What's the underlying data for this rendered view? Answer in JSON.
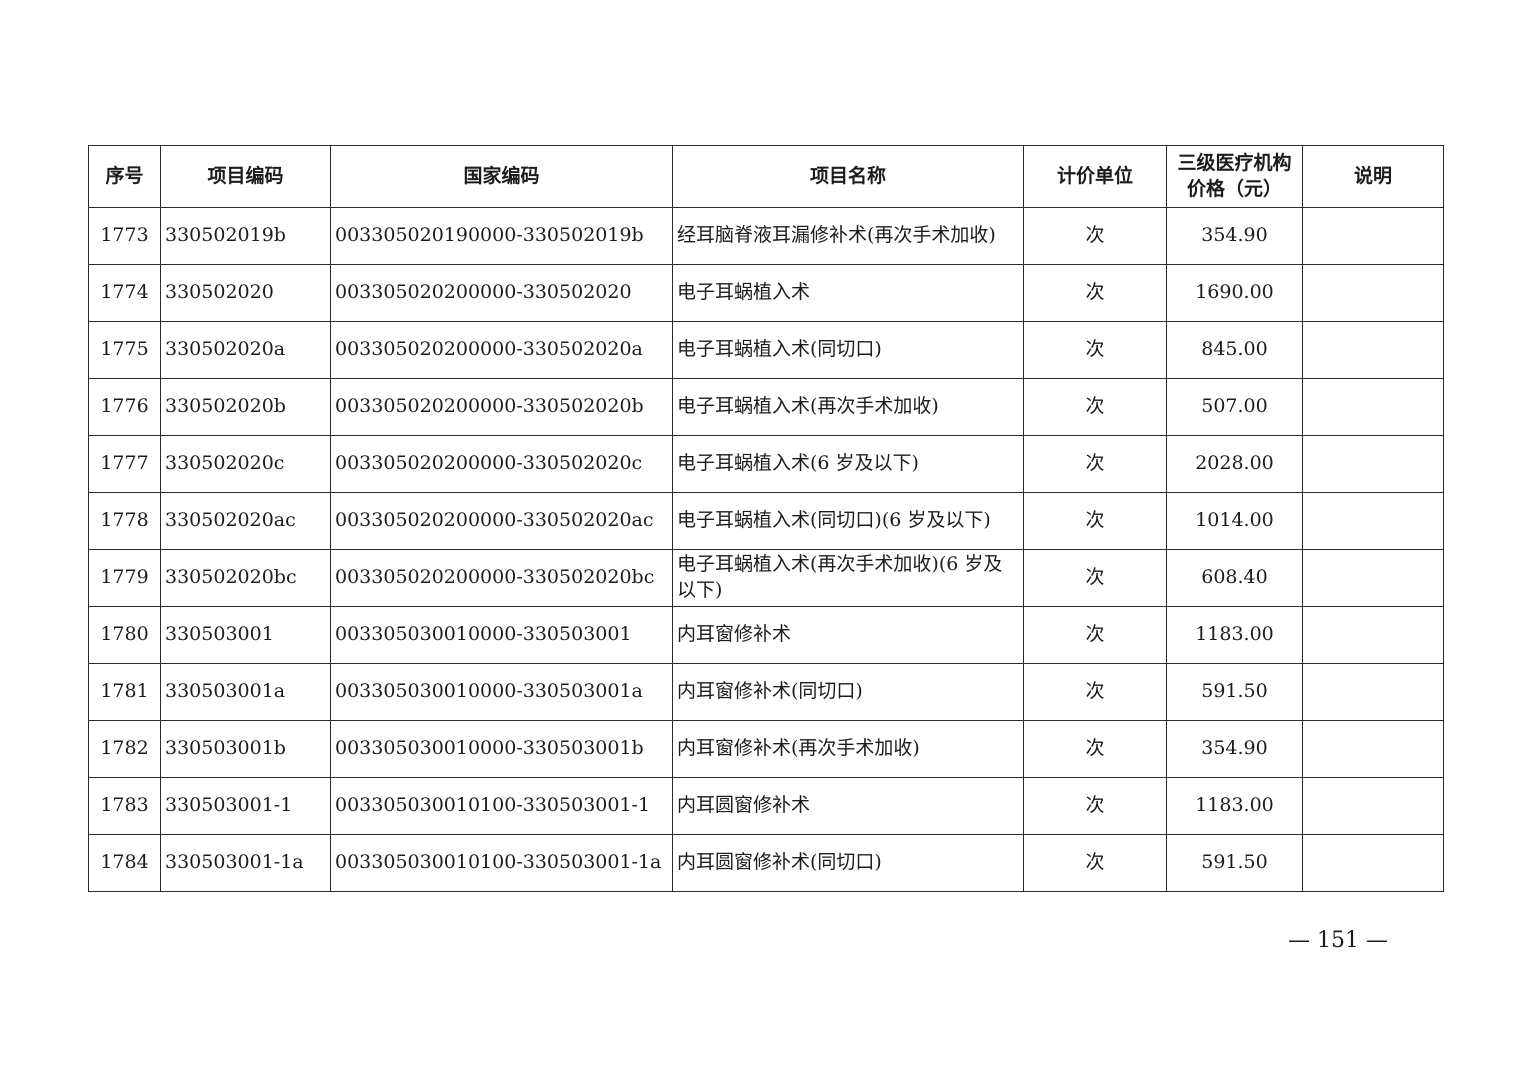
{
  "colors": {
    "background": "#ffffff",
    "text": "#1c1c1c",
    "border": "#2b2b2b"
  },
  "page_number": "— 151 —",
  "table": {
    "headers": [
      "序号",
      "项目编码",
      "国家编码",
      "项目名称",
      "计价单位",
      "三级医疗机构价格（元）",
      "说明"
    ],
    "rows": [
      {
        "seq": "1773",
        "code": "330502019b",
        "national_code": "003305020190000-330502019b",
        "name": "经耳脑脊液耳漏修补术(再次手术加收)",
        "unit": "次",
        "price": "354.90",
        "note": ""
      },
      {
        "seq": "1774",
        "code": "330502020",
        "national_code": "003305020200000-330502020",
        "name": "电子耳蜗植入术",
        "unit": "次",
        "price": "1690.00",
        "note": ""
      },
      {
        "seq": "1775",
        "code": "330502020a",
        "national_code": "003305020200000-330502020a",
        "name": "电子耳蜗植入术(同切口)",
        "unit": "次",
        "price": "845.00",
        "note": ""
      },
      {
        "seq": "1776",
        "code": "330502020b",
        "national_code": "003305020200000-330502020b",
        "name": "电子耳蜗植入术(再次手术加收)",
        "unit": "次",
        "price": "507.00",
        "note": ""
      },
      {
        "seq": "1777",
        "code": "330502020c",
        "national_code": "003305020200000-330502020c",
        "name": "电子耳蜗植入术(6 岁及以下)",
        "unit": "次",
        "price": "2028.00",
        "note": ""
      },
      {
        "seq": "1778",
        "code": "330502020ac",
        "national_code": "003305020200000-330502020ac",
        "name": "电子耳蜗植入术(同切口)(6 岁及以下)",
        "unit": "次",
        "price": "1014.00",
        "note": ""
      },
      {
        "seq": "1779",
        "code": "330502020bc",
        "national_code": "003305020200000-330502020bc",
        "name": "电子耳蜗植入术(再次手术加收)(6 岁及以下)",
        "unit": "次",
        "price": "608.40",
        "note": ""
      },
      {
        "seq": "1780",
        "code": "330503001",
        "national_code": "003305030010000-330503001",
        "name": "内耳窗修补术",
        "unit": "次",
        "price": "1183.00",
        "note": ""
      },
      {
        "seq": "1781",
        "code": "330503001a",
        "national_code": "003305030010000-330503001a",
        "name": "内耳窗修补术(同切口)",
        "unit": "次",
        "price": "591.50",
        "note": ""
      },
      {
        "seq": "1782",
        "code": "330503001b",
        "national_code": "003305030010000-330503001b",
        "name": "内耳窗修补术(再次手术加收)",
        "unit": "次",
        "price": "354.90",
        "note": ""
      },
      {
        "seq": "1783",
        "code": "330503001-1",
        "national_code": "003305030010100-330503001-1",
        "name": "内耳圆窗修补术",
        "unit": "次",
        "price": "1183.00",
        "note": ""
      },
      {
        "seq": "1784",
        "code": "330503001-1a",
        "national_code": "003305030010100-330503001-1a",
        "name": "内耳圆窗修补术(同切口)",
        "unit": "次",
        "price": "591.50",
        "note": ""
      }
    ]
  }
}
